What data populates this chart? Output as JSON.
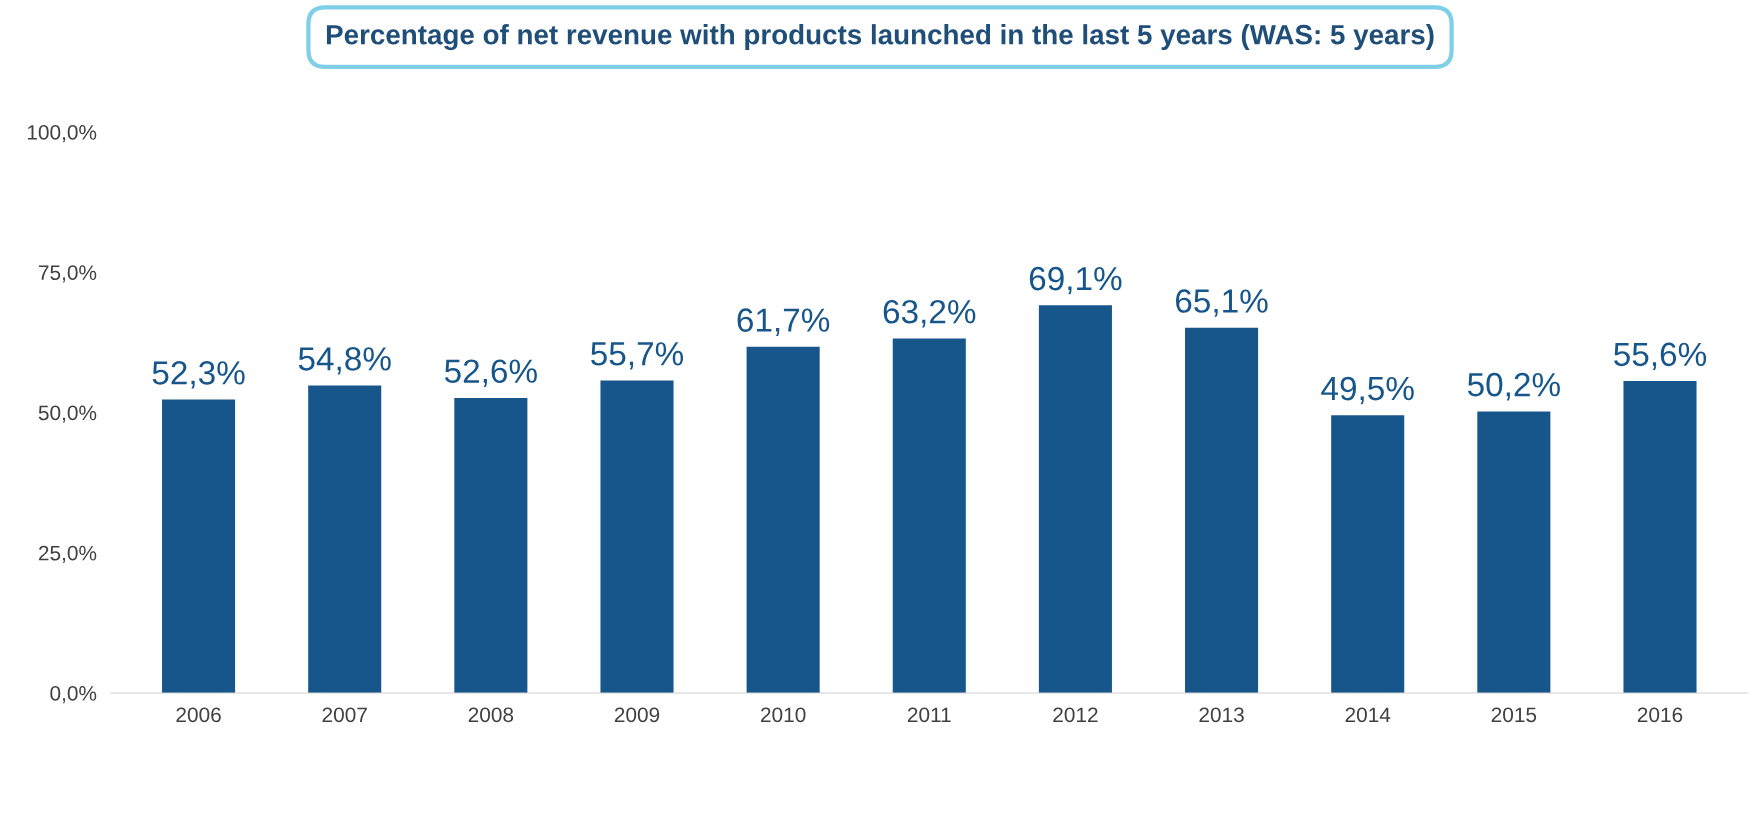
{
  "chart_data": {
    "type": "bar",
    "title": "Percentage of net revenue with products launched in the last 5 years (WAS: 5 years)",
    "categories": [
      "2006",
      "2007",
      "2008",
      "2009",
      "2010",
      "2011",
      "2012",
      "2013",
      "2014",
      "2015",
      "2016"
    ],
    "values": [
      52.3,
      54.8,
      52.6,
      55.7,
      61.7,
      63.2,
      69.1,
      65.1,
      49.5,
      50.2,
      55.6
    ],
    "value_labels": [
      "52,3%",
      "54,8%",
      "52,6%",
      "55,7%",
      "61,7%",
      "63,2%",
      "69,1%",
      "65,1%",
      "49,5%",
      "50,2%",
      "55,6%"
    ],
    "color": "#17568b",
    "ylim": [
      0,
      100
    ],
    "yticks": [
      {
        "value": 0,
        "label": "0,0%"
      },
      {
        "value": 25,
        "label": "25,0%"
      },
      {
        "value": 50,
        "label": "50,0%"
      },
      {
        "value": 75,
        "label": "75,0%"
      },
      {
        "value": 100,
        "label": "100,0%"
      }
    ],
    "grid": false,
    "legend": false
  }
}
